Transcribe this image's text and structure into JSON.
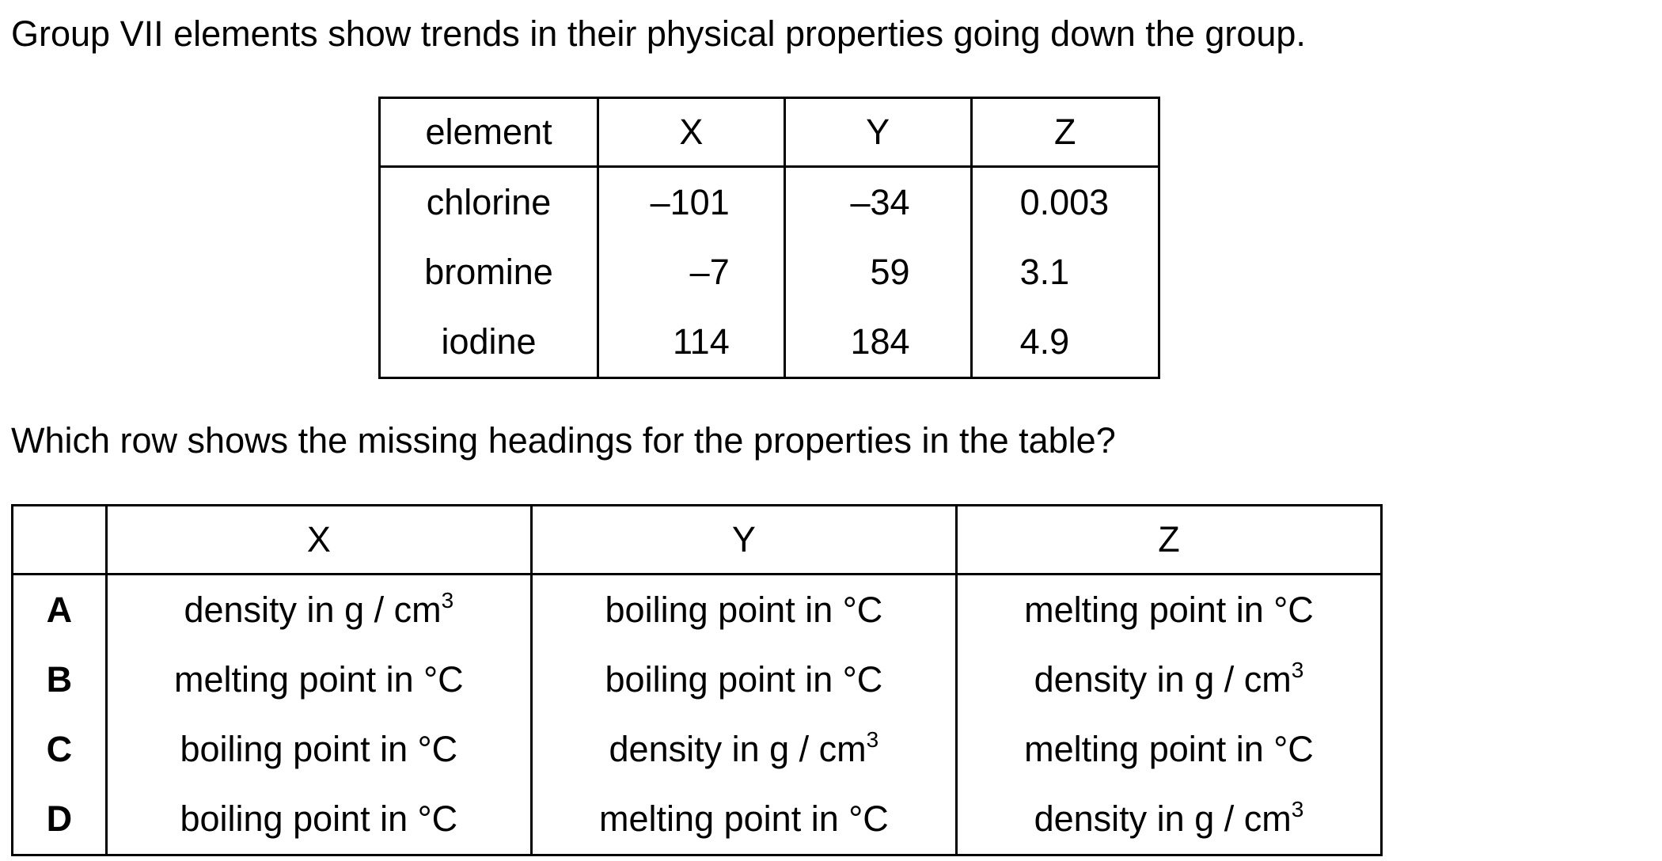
{
  "intro": "Group VII elements show trends in their physical properties going down the group.",
  "data_table": {
    "headers": [
      "element",
      "X",
      "Y",
      "Z"
    ],
    "rows": [
      {
        "element": "chlorine",
        "x": "–101",
        "y": "–34",
        "z": "0.003"
      },
      {
        "element": "bromine",
        "x": "–7",
        "y": "59",
        "z": "3.1"
      },
      {
        "element": "iodine",
        "x": "114",
        "y": "184",
        "z": "4.9"
      }
    ]
  },
  "question": "Which row shows the missing headings for the properties in the table?",
  "answer_table": {
    "headers": [
      "",
      "X",
      "Y",
      "Z"
    ],
    "rows": [
      {
        "key": "A",
        "x": "density in g / cm3",
        "y": "boiling point in °C",
        "z": "melting point in °C"
      },
      {
        "key": "B",
        "x": "melting point in °C",
        "y": "boiling point in °C",
        "z": "density in g / cm3"
      },
      {
        "key": "C",
        "x": "boiling point in °C",
        "y": "density in g / cm3",
        "z": "melting point in °C"
      },
      {
        "key": "D",
        "x": "boiling point in °C",
        "y": "melting point in °C",
        "z": "density in g / cm3"
      }
    ]
  }
}
